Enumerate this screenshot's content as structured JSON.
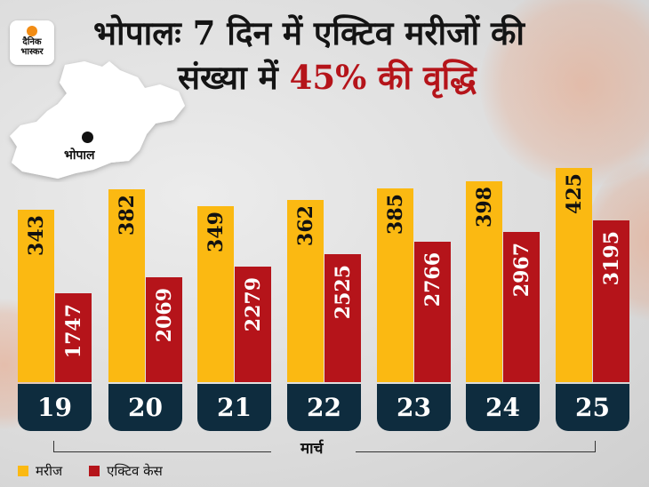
{
  "brand": {
    "line1": "दैनिक",
    "line2": "भास्कर",
    "dot_color": "#f28c14"
  },
  "title": {
    "line1": "भोपालः 7 दिन में एक्टिव मरीजों की",
    "line2_prefix": "संख्या में ",
    "line2_highlight": "45% की वृद्धि",
    "highlight_color": "#b5141a"
  },
  "map": {
    "city_label": "भोपाल"
  },
  "axis": {
    "month_label": "मार्च"
  },
  "legend": [
    {
      "label": "मरीज",
      "color": "#fbb912"
    },
    {
      "label": "एक्टिव केस",
      "color": "#b5141a"
    }
  ],
  "chart_data": {
    "type": "bar",
    "title": "भोपालः 7 दिन में एक्टिव मरीजों की संख्या में 45% की वृद्धि",
    "xlabel": "मार्च",
    "ylabel": "",
    "categories": [
      "19",
      "20",
      "21",
      "22",
      "23",
      "24",
      "25"
    ],
    "series": [
      {
        "name": "मरीज",
        "color": "#fbb912",
        "values": [
          343,
          382,
          349,
          362,
          385,
          398,
          425
        ]
      },
      {
        "name": "एक्टिव केस",
        "color": "#b5141a",
        "values": [
          1747,
          2069,
          2279,
          2525,
          2766,
          2967,
          3195
        ]
      }
    ],
    "grid": false,
    "legend_position": "bottom-left",
    "data_labels": true
  }
}
